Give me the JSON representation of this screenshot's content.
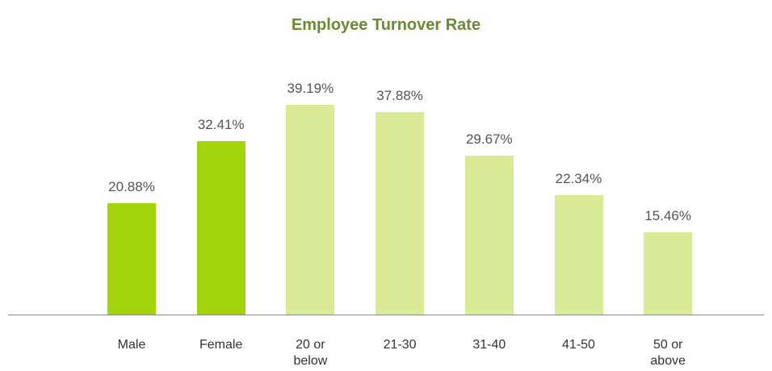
{
  "chart_data": {
    "type": "bar",
    "title": "Employee Turnover Rate",
    "categories": [
      "Male",
      "Female",
      "20 or below",
      "21-30",
      "31-40",
      "41-50",
      "50 or above"
    ],
    "values": [
      20.88,
      32.41,
      39.19,
      37.88,
      29.67,
      22.34,
      15.46
    ],
    "value_labels": [
      "20.88%",
      "32.41%",
      "39.19%",
      "37.88%",
      "29.67%",
      "22.34%",
      "15.46%"
    ],
    "colors": [
      "#a3d30a",
      "#a3d30a",
      "#d9eb97",
      "#d9eb97",
      "#d9eb97",
      "#d9eb97",
      "#d9eb97"
    ]
  }
}
